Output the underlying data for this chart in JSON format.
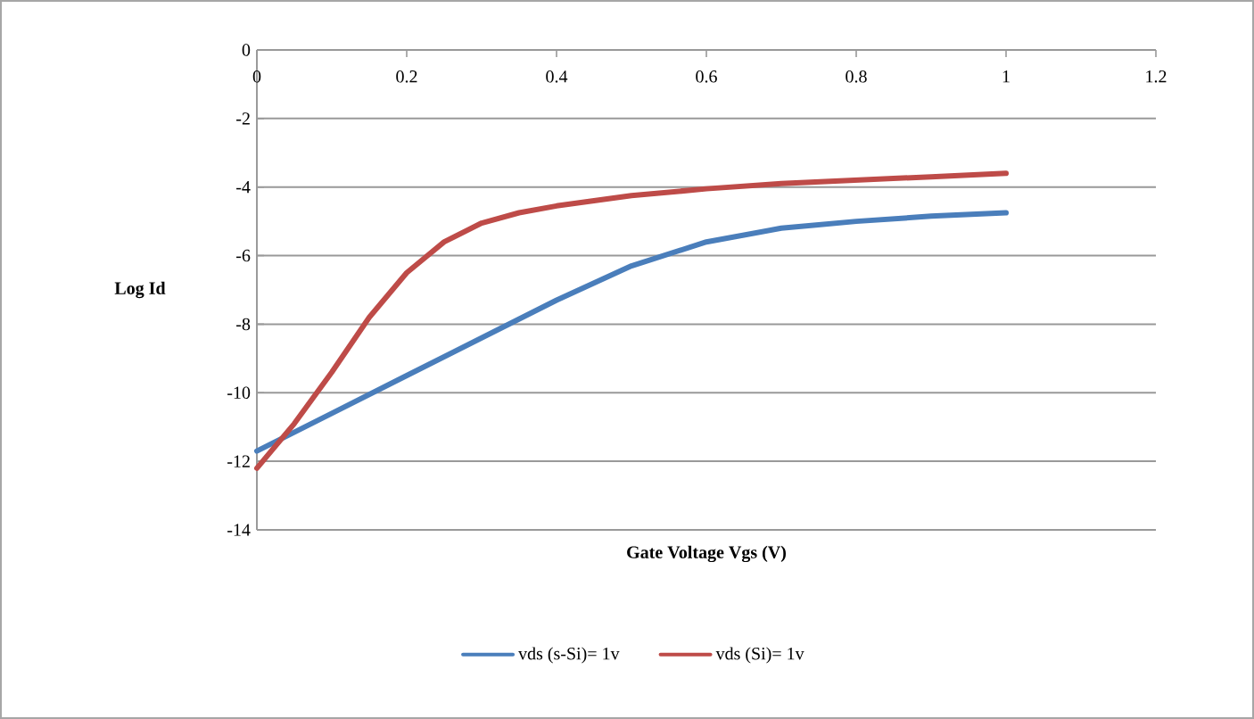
{
  "chart_data": {
    "type": "line",
    "xlabel": "Gate Voltage Vgs (V)",
    "ylabel": "Log Id",
    "xlim": [
      0,
      1.2
    ],
    "xticks": [
      0,
      0.2,
      0.4,
      0.6,
      0.8,
      1,
      1.2
    ],
    "ylim": [
      -14,
      0
    ],
    "yticks": [
      -14,
      -12,
      -10,
      -8,
      -6,
      -4,
      -2,
      0
    ],
    "grid": "y",
    "legend": "bottom",
    "line_style": "solid",
    "series": [
      {
        "name": "vds (s-Si)= 1v",
        "color": "#4a7ebb",
        "x": [
          0,
          0.1,
          0.2,
          0.3,
          0.4,
          0.5,
          0.6,
          0.7,
          0.8,
          0.9,
          1.0
        ],
        "values": [
          -11.7,
          -10.6,
          -9.5,
          -8.4,
          -7.3,
          -6.3,
          -5.6,
          -5.2,
          -5.0,
          -4.85,
          -4.75
        ]
      },
      {
        "name": "vds (Si)= 1v",
        "color": "#be4b48",
        "x": [
          0,
          0.05,
          0.1,
          0.15,
          0.2,
          0.25,
          0.3,
          0.35,
          0.4,
          0.5,
          0.6,
          0.7,
          0.8,
          0.9,
          1.0
        ],
        "values": [
          -12.2,
          -10.9,
          -9.4,
          -7.8,
          -6.5,
          -5.6,
          -5.05,
          -4.75,
          -4.55,
          -4.25,
          -4.05,
          -3.9,
          -3.8,
          -3.7,
          -3.6
        ]
      }
    ]
  }
}
